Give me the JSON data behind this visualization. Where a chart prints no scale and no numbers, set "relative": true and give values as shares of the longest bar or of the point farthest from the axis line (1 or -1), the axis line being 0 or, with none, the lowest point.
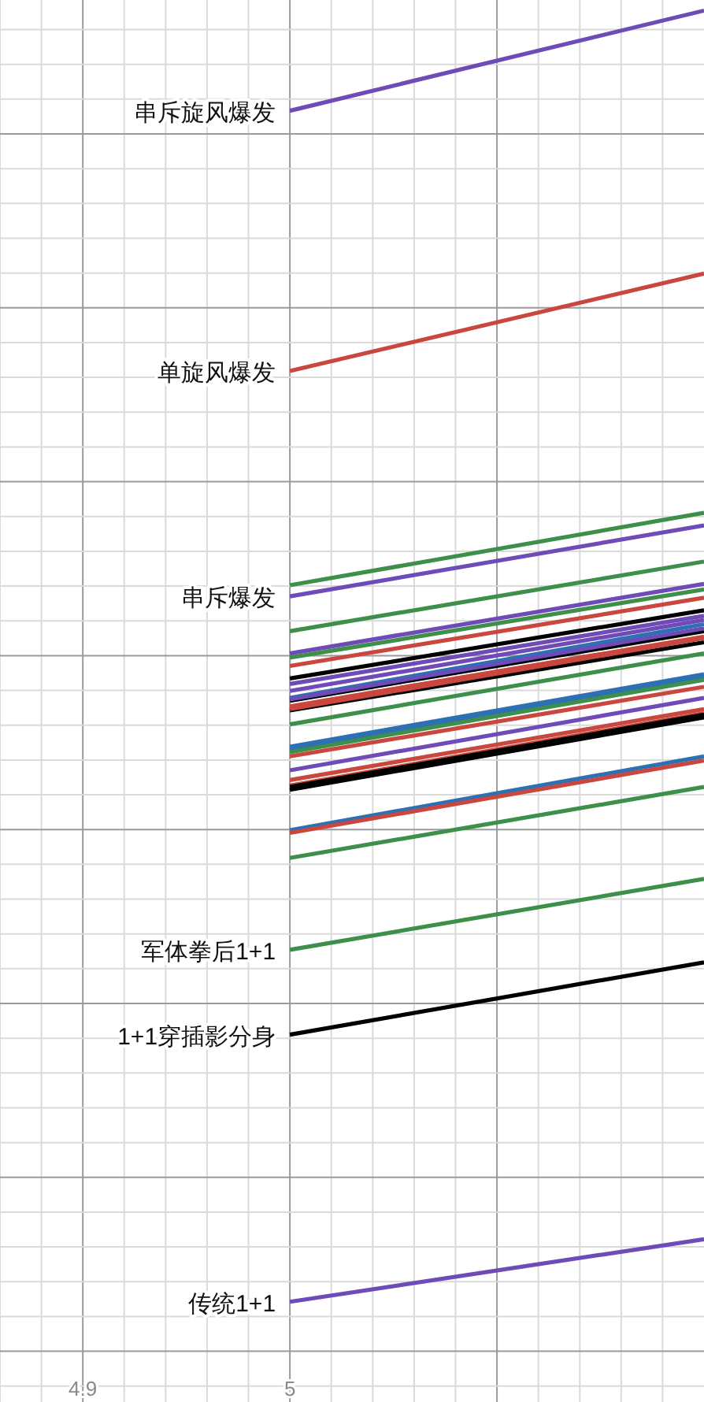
{
  "chart_data": {
    "type": "line",
    "relative": true,
    "grid": true,
    "tick_labels": "x",
    "x": [
      5,
      5.2
    ],
    "xlim": [
      4.86,
      5.2
    ],
    "xticks": [
      4.9,
      5,
      {
        "value": 5.1,
        "label": null
      }
    ],
    "series": [
      {
        "name": "串斥旋风爆发",
        "color": "#6f4bb8",
        "values": [
          0.928,
          1
        ]
      },
      {
        "name": "单旋风爆发",
        "color": "#c9473f",
        "values": [
          0.741,
          0.811
        ]
      },
      {
        "color": "#3d8f4a",
        "values": [
          0.587,
          0.639
        ]
      },
      {
        "name": "串斥爆发",
        "color": "#6f4bb8",
        "values": [
          0.579,
          0.63
        ]
      },
      {
        "color": "#3d8f4a",
        "values": [
          0.554,
          0.604
        ]
      },
      {
        "color": "#6f4bb8",
        "values": [
          0.538,
          0.588
        ]
      },
      {
        "color": "#3d8f4a",
        "values": [
          0.535,
          0.584
        ]
      },
      {
        "color": "#c9473f",
        "values": [
          0.529,
          0.578
        ]
      },
      {
        "color": "#000000",
        "values": [
          0.52,
          0.569
        ]
      },
      {
        "color": "#6f4bb8",
        "values": [
          0.516,
          0.565
        ]
      },
      {
        "color": "#6f4bb8",
        "values": [
          0.511,
          0.562
        ]
      },
      {
        "color": "#2d70b3",
        "values": [
          0.506,
          0.559
        ]
      },
      {
        "color": "#000000",
        "values": [
          0.504,
          0.554
        ]
      },
      {
        "color": "#6f4bb8",
        "values": [
          0.505,
          0.556
        ]
      },
      {
        "color": "#c9473f",
        "values": [
          0.5,
          0.55
        ]
      },
      {
        "color": "#000000",
        "values": [
          0.497,
          0.546
        ]
      },
      {
        "color": "#c9473f",
        "values": [
          0.498,
          0.549
        ]
      },
      {
        "color": "#3d8f4a",
        "values": [
          0.487,
          0.538
        ]
      },
      {
        "color": "#2d70b3",
        "values": [
          0.471,
          0.523
        ]
      },
      {
        "color": "#2d70b3",
        "values": [
          0.469,
          0.521
        ]
      },
      {
        "color": "#3d8f4a",
        "values": [
          0.467,
          0.519
        ]
      },
      {
        "color": "#c9473f",
        "values": [
          0.464,
          0.514
        ]
      },
      {
        "color": "#6f4bb8",
        "values": [
          0.454,
          0.506
        ]
      },
      {
        "color": "#c9473f",
        "values": [
          0.447,
          0.498
        ]
      },
      {
        "color": "#c9473f",
        "values": [
          0.443,
          0.495
        ]
      },
      {
        "color": "#000000",
        "values": [
          0.442,
          0.494
        ]
      },
      {
        "color": "#000000",
        "values": [
          0.44,
          0.492
        ]
      },
      {
        "color": "#2d70b3",
        "values": [
          0.411,
          0.464
        ]
      },
      {
        "color": "#c9473f",
        "values": [
          0.409,
          0.461
        ]
      },
      {
        "color": "#3d8f4a",
        "values": [
          0.391,
          0.442
        ]
      },
      {
        "name": "军体拳后1+1",
        "color": "#3d8f4a",
        "values": [
          0.325,
          0.376
        ]
      },
      {
        "name": "1+1穿插影分身",
        "color": "#000000",
        "values": [
          0.264,
          0.316
        ]
      },
      {
        "name": "传统1+1",
        "color": "#6f4bb8",
        "values": [
          0.072,
          0.117
        ]
      }
    ]
  }
}
